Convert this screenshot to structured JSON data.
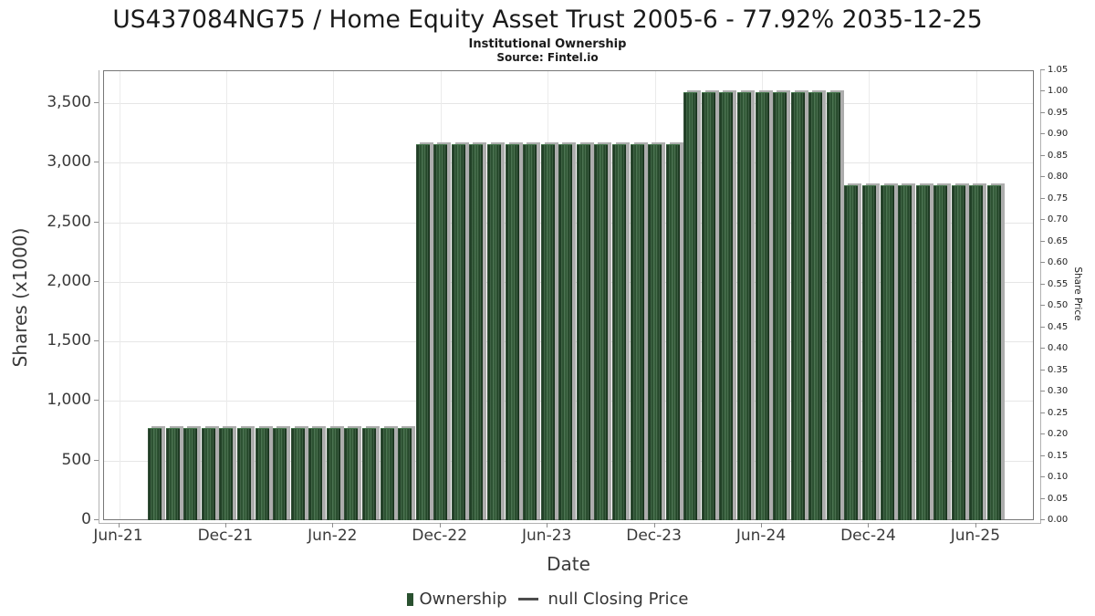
{
  "header": {
    "title": "US437084NG75 / Home Equity Asset Trust 2005-6 - 77.92% 2035-12-25",
    "subtitle": "Institutional Ownership",
    "source": "Source: Fintel.io"
  },
  "chart_data": {
    "type": "bar",
    "title": "US437084NG75 / Home Equity Asset Trust 2005-6 - 77.92% 2035-12-25",
    "subtitle": "Institutional Ownership",
    "source": "Source: Fintel.io",
    "grid": "on",
    "legend_position": "bottom-center",
    "x_axis": {
      "label": "Date",
      "tick_labels": [
        "Jun-21",
        "Dec-21",
        "Jun-22",
        "Dec-22",
        "Jun-23",
        "Dec-23",
        "Jun-24",
        "Dec-24",
        "Jun-25"
      ],
      "tick_month_offsets": [
        0,
        6,
        12,
        18,
        24,
        30,
        36,
        42,
        48
      ]
    },
    "y_axis_left": {
      "label": "Shares (x1000)",
      "tick_labels": [
        "0",
        "500",
        "1,000",
        "1,500",
        "2,000",
        "2,500",
        "3,000",
        "3,500"
      ],
      "tick_values": [
        0,
        500,
        1000,
        1500,
        2000,
        2500,
        3000,
        3500
      ],
      "range": [
        0,
        3775
      ]
    },
    "y_axis_right": {
      "label": "Share Price",
      "tick_labels": [
        "0.00",
        "0.05",
        "0.10",
        "0.15",
        "0.20",
        "0.25",
        "0.30",
        "0.35",
        "0.40",
        "0.45",
        "0.50",
        "0.55",
        "0.60",
        "0.65",
        "0.70",
        "0.75",
        "0.80",
        "0.85",
        "0.90",
        "0.95",
        "1.00",
        "1.05"
      ],
      "tick_values": [
        0,
        0.05,
        0.1,
        0.15,
        0.2,
        0.25,
        0.3,
        0.35,
        0.4,
        0.45,
        0.5,
        0.55,
        0.6,
        0.65,
        0.7,
        0.75,
        0.8,
        0.85,
        0.9,
        0.95,
        1.0,
        1.05
      ],
      "range": [
        0,
        1.05
      ]
    },
    "series": [
      {
        "name": "Ownership",
        "type": "bar",
        "color": "#2a5130",
        "points": [
          {
            "month": "Aug-21",
            "value": 775
          },
          {
            "month": "Sep-21",
            "value": 775
          },
          {
            "month": "Oct-21",
            "value": 775
          },
          {
            "month": "Nov-21",
            "value": 775
          },
          {
            "month": "Dec-21",
            "value": 775
          },
          {
            "month": "Jan-22",
            "value": 775
          },
          {
            "month": "Feb-22",
            "value": 775
          },
          {
            "month": "Mar-22",
            "value": 775
          },
          {
            "month": "Apr-22",
            "value": 775
          },
          {
            "month": "May-22",
            "value": 775
          },
          {
            "month": "Jun-22",
            "value": 775
          },
          {
            "month": "Jul-22",
            "value": 775
          },
          {
            "month": "Aug-22",
            "value": 775
          },
          {
            "month": "Sep-22",
            "value": 775
          },
          {
            "month": "Oct-22",
            "value": 775
          },
          {
            "month": "Nov-22",
            "value": 3155
          },
          {
            "month": "Dec-22",
            "value": 3155
          },
          {
            "month": "Jan-23",
            "value": 3155
          },
          {
            "month": "Feb-23",
            "value": 3155
          },
          {
            "month": "Mar-23",
            "value": 3155
          },
          {
            "month": "Apr-23",
            "value": 3155
          },
          {
            "month": "May-23",
            "value": 3155
          },
          {
            "month": "Jun-23",
            "value": 3155
          },
          {
            "month": "Jul-23",
            "value": 3155
          },
          {
            "month": "Aug-23",
            "value": 3155
          },
          {
            "month": "Sep-23",
            "value": 3155
          },
          {
            "month": "Oct-23",
            "value": 3155
          },
          {
            "month": "Nov-23",
            "value": 3155
          },
          {
            "month": "Dec-23",
            "value": 3155
          },
          {
            "month": "Jan-24",
            "value": 3155
          },
          {
            "month": "Feb-24",
            "value": 3595
          },
          {
            "month": "Mar-24",
            "value": 3595
          },
          {
            "month": "Apr-24",
            "value": 3595
          },
          {
            "month": "May-24",
            "value": 3595
          },
          {
            "month": "Jun-24",
            "value": 3595
          },
          {
            "month": "Jul-24",
            "value": 3595
          },
          {
            "month": "Aug-24",
            "value": 3595
          },
          {
            "month": "Sep-24",
            "value": 3595
          },
          {
            "month": "Oct-24",
            "value": 3595
          },
          {
            "month": "Nov-24",
            "value": 2810
          },
          {
            "month": "Dec-24",
            "value": 2810
          },
          {
            "month": "Jan-25",
            "value": 2810
          },
          {
            "month": "Feb-25",
            "value": 2810
          },
          {
            "month": "Mar-25",
            "value": 2810
          },
          {
            "month": "Apr-25",
            "value": 2810
          },
          {
            "month": "May-25",
            "value": 2810
          },
          {
            "month": "Jun-25",
            "value": 2810
          },
          {
            "month": "Jul-25",
            "value": 2810
          }
        ]
      },
      {
        "name": "null Closing Price",
        "type": "line",
        "color": "#4d4d4d",
        "points": []
      }
    ],
    "legend": [
      {
        "label": "Ownership",
        "marker": "bar"
      },
      {
        "label": "null Closing Price",
        "marker": "dash"
      }
    ]
  }
}
